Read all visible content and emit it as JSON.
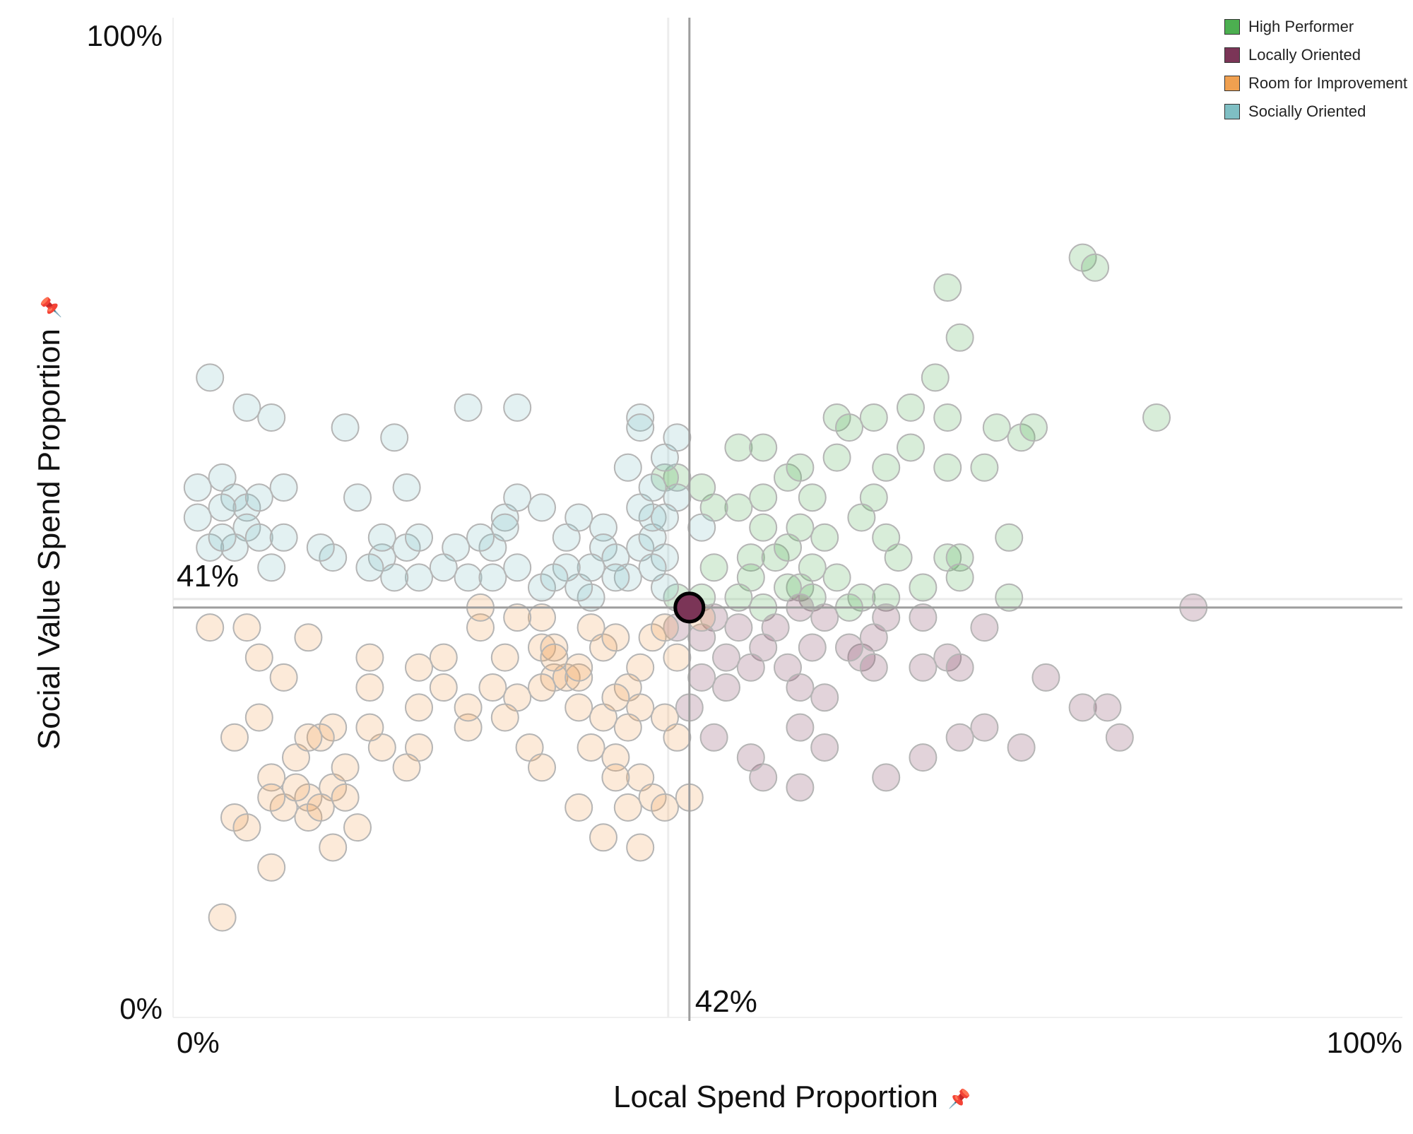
{
  "colors": {
    "high_performer": "#4caf50",
    "locally_oriented": "#7b3557",
    "room_for_improvement": "#f0a050",
    "socially_oriented": "#7fbfc4"
  },
  "chart_data": {
    "type": "scatter",
    "xlabel": "Local Spend Proportion",
    "ylabel": "Social Value Spend Proportion",
    "xlim": [
      0,
      100
    ],
    "ylim": [
      0,
      100
    ],
    "x_tick_labels": [
      "0%",
      "100%"
    ],
    "y_tick_labels": [
      "0%",
      "100%"
    ],
    "legend_position": "top-right",
    "grid": false,
    "axis_pin_icon": "pin-icon",
    "legend": [
      {
        "name": "High Performer",
        "color": "#4caf50"
      },
      {
        "name": "Locally Oriented",
        "color": "#7b3557"
      },
      {
        "name": "Room for Improvement",
        "color": "#f0a050"
      },
      {
        "name": "Socially Oriented",
        "color": "#7fbfc4"
      }
    ],
    "reference_lines": {
      "x": 42,
      "y": 41,
      "x_label": "42%",
      "y_label": "41%"
    },
    "highlighted_point": {
      "x": 42,
      "y": 41,
      "category": "Locally Oriented"
    },
    "series": [
      {
        "name": "High Performer",
        "color": "#4caf50",
        "points": [
          [
            63,
            73
          ],
          [
            64,
            68
          ],
          [
            74,
            76
          ],
          [
            75,
            75
          ],
          [
            62,
            64
          ],
          [
            60,
            61
          ],
          [
            57,
            60
          ],
          [
            63,
            60
          ],
          [
            67,
            59
          ],
          [
            63,
            55
          ],
          [
            66,
            55
          ],
          [
            80,
            60
          ],
          [
            69,
            58
          ],
          [
            70,
            59
          ],
          [
            54,
            60
          ],
          [
            55,
            59
          ],
          [
            60,
            57
          ],
          [
            46,
            57
          ],
          [
            48,
            57
          ],
          [
            58,
            55
          ],
          [
            54,
            56
          ],
          [
            50,
            54
          ],
          [
            51,
            55
          ],
          [
            48,
            52
          ],
          [
            52,
            52
          ],
          [
            57,
            52
          ],
          [
            46,
            51
          ],
          [
            44,
            51
          ],
          [
            43,
            53
          ],
          [
            41,
            54
          ],
          [
            40,
            54
          ],
          [
            48,
            49
          ],
          [
            51,
            49
          ],
          [
            53,
            48
          ],
          [
            56,
            50
          ],
          [
            58,
            48
          ],
          [
            59,
            46
          ],
          [
            63,
            46
          ],
          [
            64,
            46
          ],
          [
            68,
            48
          ],
          [
            47,
            46
          ],
          [
            49,
            46
          ],
          [
            50,
            47
          ],
          [
            52,
            45
          ],
          [
            44,
            45
          ],
          [
            47,
            44
          ],
          [
            51,
            43
          ],
          [
            54,
            44
          ],
          [
            56,
            42
          ],
          [
            58,
            42
          ],
          [
            61,
            43
          ],
          [
            64,
            44
          ],
          [
            68,
            42
          ],
          [
            41,
            42
          ],
          [
            43,
            42
          ],
          [
            46,
            42
          ],
          [
            48,
            41
          ],
          [
            50,
            43
          ],
          [
            52,
            42
          ],
          [
            55,
            41
          ]
        ]
      },
      {
        "name": "Locally Oriented",
        "color": "#7b3557",
        "points": [
          [
            42,
            41
          ],
          [
            83,
            41
          ],
          [
            66,
            39
          ],
          [
            61,
            40
          ],
          [
            58,
            40
          ],
          [
            51,
            41
          ],
          [
            53,
            40
          ],
          [
            49,
            39
          ],
          [
            46,
            39
          ],
          [
            44,
            40
          ],
          [
            43,
            38
          ],
          [
            41,
            39
          ],
          [
            48,
            37
          ],
          [
            52,
            37
          ],
          [
            56,
            36
          ],
          [
            57,
            38
          ],
          [
            55,
            37
          ],
          [
            50,
            35
          ],
          [
            51,
            33
          ],
          [
            47,
            35
          ],
          [
            45,
            36
          ],
          [
            43,
            34
          ],
          [
            53,
            32
          ],
          [
            57,
            35
          ],
          [
            61,
            35
          ],
          [
            63,
            36
          ],
          [
            64,
            35
          ],
          [
            71,
            34
          ],
          [
            74,
            31
          ],
          [
            69,
            27
          ],
          [
            64,
            28
          ],
          [
            58,
            24
          ],
          [
            77,
            28
          ],
          [
            76,
            31
          ],
          [
            66,
            29
          ],
          [
            61,
            26
          ],
          [
            48,
            24
          ],
          [
            51,
            23
          ],
          [
            44,
            28
          ],
          [
            42,
            31
          ],
          [
            47,
            26
          ],
          [
            53,
            27
          ],
          [
            51,
            29
          ],
          [
            45,
            33
          ]
        ]
      },
      {
        "name": "Room for Improvement",
        "color": "#f0a050",
        "points": [
          [
            3,
            39
          ],
          [
            6,
            39
          ],
          [
            7,
            36
          ],
          [
            7,
            30
          ],
          [
            16,
            36
          ],
          [
            16,
            33
          ],
          [
            20,
            31
          ],
          [
            20,
            35
          ],
          [
            22,
            36
          ],
          [
            22,
            33
          ],
          [
            25,
            39
          ],
          [
            25,
            41
          ],
          [
            27,
            36
          ],
          [
            28,
            32
          ],
          [
            30,
            40
          ],
          [
            30,
            37
          ],
          [
            31,
            37
          ],
          [
            31,
            34
          ],
          [
            32,
            34
          ],
          [
            33,
            31
          ],
          [
            34,
            39
          ],
          [
            35,
            37
          ],
          [
            36,
            38
          ],
          [
            38,
            35
          ],
          [
            39,
            38
          ],
          [
            37,
            33
          ],
          [
            35,
            30
          ],
          [
            29,
            27
          ],
          [
            27,
            30
          ],
          [
            30,
            25
          ],
          [
            24,
            29
          ],
          [
            20,
            27
          ],
          [
            19,
            25
          ],
          [
            17,
            27
          ],
          [
            16,
            29
          ],
          [
            13,
            29
          ],
          [
            12,
            28
          ],
          [
            10,
            26
          ],
          [
            11,
            28
          ],
          [
            13,
            23
          ],
          [
            11,
            22
          ],
          [
            9,
            21
          ],
          [
            11,
            20
          ],
          [
            12,
            21
          ],
          [
            14,
            22
          ],
          [
            15,
            19
          ],
          [
            10,
            23
          ],
          [
            14,
            25
          ],
          [
            8,
            24
          ],
          [
            8,
            22
          ],
          [
            13,
            17
          ],
          [
            8,
            15
          ],
          [
            5,
            20
          ],
          [
            5,
            28
          ],
          [
            9,
            34
          ],
          [
            11,
            38
          ],
          [
            6,
            19
          ],
          [
            4,
            10
          ],
          [
            33,
            34
          ],
          [
            36,
            32
          ],
          [
            38,
            31
          ],
          [
            40,
            30
          ],
          [
            41,
            28
          ],
          [
            34,
            27
          ],
          [
            36,
            26
          ],
          [
            37,
            29
          ],
          [
            38,
            24
          ],
          [
            39,
            22
          ],
          [
            37,
            21
          ],
          [
            36,
            24
          ],
          [
            33,
            21
          ],
          [
            35,
            18
          ],
          [
            38,
            17
          ],
          [
            42,
            22
          ],
          [
            40,
            21
          ],
          [
            41,
            36
          ],
          [
            43,
            40
          ],
          [
            40,
            39
          ],
          [
            28,
            40
          ],
          [
            31,
            36
          ],
          [
            33,
            35
          ],
          [
            30,
            33
          ],
          [
            26,
            33
          ],
          [
            24,
            31
          ]
        ]
      },
      {
        "name": "Socially Oriented",
        "color": "#7fbfc4",
        "points": [
          [
            3,
            64
          ],
          [
            6,
            61
          ],
          [
            8,
            60
          ],
          [
            14,
            59
          ],
          [
            18,
            58
          ],
          [
            24,
            61
          ],
          [
            28,
            61
          ],
          [
            27,
            50
          ],
          [
            19,
            53
          ],
          [
            15,
            52
          ],
          [
            9,
            53
          ],
          [
            2,
            53
          ],
          [
            4,
            54
          ],
          [
            5,
            52
          ],
          [
            6,
            51
          ],
          [
            7,
            52
          ],
          [
            4,
            51
          ],
          [
            2,
            50
          ],
          [
            6,
            49
          ],
          [
            7,
            48
          ],
          [
            5,
            47
          ],
          [
            3,
            47
          ],
          [
            4,
            48
          ],
          [
            9,
            48
          ],
          [
            13,
            46
          ],
          [
            17,
            46
          ],
          [
            19,
            47
          ],
          [
            20,
            48
          ],
          [
            23,
            47
          ],
          [
            24,
            44
          ],
          [
            26,
            47
          ],
          [
            27,
            49
          ],
          [
            28,
            52
          ],
          [
            30,
            51
          ],
          [
            32,
            48
          ],
          [
            33,
            50
          ],
          [
            35,
            49
          ],
          [
            35,
            47
          ],
          [
            36,
            46
          ],
          [
            37,
            44
          ],
          [
            38,
            47
          ],
          [
            39,
            48
          ],
          [
            40,
            46
          ],
          [
            40,
            43
          ],
          [
            39,
            45
          ],
          [
            36,
            44
          ],
          [
            34,
            42
          ],
          [
            33,
            43
          ],
          [
            34,
            45
          ],
          [
            32,
            45
          ],
          [
            30,
            43
          ],
          [
            31,
            44
          ],
          [
            28,
            45
          ],
          [
            26,
            44
          ],
          [
            22,
            45
          ],
          [
            20,
            44
          ],
          [
            18,
            44
          ],
          [
            16,
            45
          ],
          [
            8,
            45
          ],
          [
            12,
            47
          ],
          [
            17,
            48
          ],
          [
            25,
            48
          ],
          [
            39,
            50
          ],
          [
            41,
            52
          ],
          [
            43,
            49
          ],
          [
            38,
            51
          ],
          [
            39,
            53
          ],
          [
            40,
            56
          ],
          [
            41,
            58
          ],
          [
            38,
            60
          ],
          [
            38,
            59
          ],
          [
            37,
            55
          ],
          [
            40,
            50
          ]
        ]
      }
    ]
  }
}
